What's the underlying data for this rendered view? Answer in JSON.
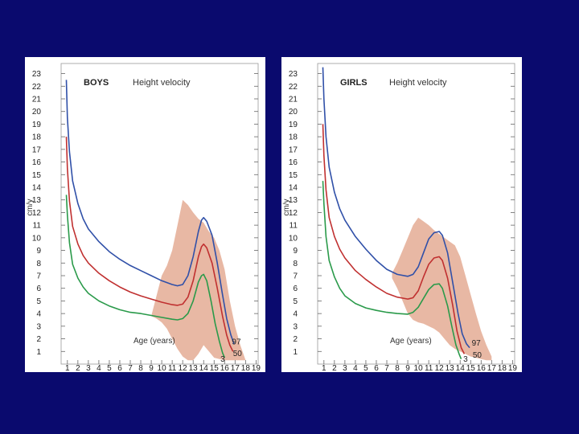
{
  "colors": {
    "background": "#0a0a6e",
    "band": "#e8b8a4",
    "p97": "#3050a8",
    "p50": "#c03030",
    "p3": "#2a9a4a"
  },
  "chart_data": [
    {
      "type": "line",
      "title": "BOYS",
      "subtitle": "Height velocity",
      "xlabel": "Age (years)",
      "ylabel": "cm/y",
      "xlim": [
        0.4,
        19.2
      ],
      "ylim": [
        0,
        23.8
      ],
      "x_ticks": [
        "1",
        "2",
        "3",
        "4",
        "5",
        "6",
        "7",
        "8",
        "9",
        "10",
        "11",
        "12",
        "13",
        "14",
        "15",
        "16",
        "17",
        "18",
        "19"
      ],
      "y_ticks": [
        "1",
        "2",
        "3",
        "4",
        "5",
        "6",
        "7",
        "8",
        "9",
        "10",
        "11",
        "12",
        "13",
        "14",
        "15",
        "16",
        "17",
        "18",
        "19",
        "20",
        "21",
        "22",
        "23"
      ],
      "band": {
        "upper": [
          [
            10,
            7
          ],
          [
            10.5,
            7.8
          ],
          [
            11,
            9
          ],
          [
            11.5,
            11
          ],
          [
            12,
            13
          ],
          [
            12.5,
            12.6
          ],
          [
            13,
            12
          ],
          [
            13.5,
            11.5
          ],
          [
            14,
            11.2
          ],
          [
            14.5,
            10.5
          ],
          [
            15,
            10
          ],
          [
            15.5,
            9
          ],
          [
            16,
            7.5
          ],
          [
            16.5,
            5
          ],
          [
            17,
            3
          ],
          [
            17.5,
            1.5
          ],
          [
            18,
            0.3
          ]
        ],
        "lower": [
          [
            18,
            0.3
          ],
          [
            17.5,
            0.3
          ],
          [
            17,
            0.3
          ],
          [
            16.5,
            0.3
          ],
          [
            16,
            0.3
          ],
          [
            15.5,
            0.4
          ],
          [
            15,
            0.5
          ],
          [
            14.5,
            1
          ],
          [
            14,
            1.5
          ],
          [
            13.5,
            0.8
          ],
          [
            13,
            0.3
          ],
          [
            12.5,
            0.3
          ],
          [
            12,
            0.6
          ],
          [
            11.5,
            1.2
          ],
          [
            11,
            2
          ],
          [
            10.5,
            2.8
          ],
          [
            10,
            3.3
          ],
          [
            9.5,
            3.6
          ],
          [
            9,
            3.8
          ]
        ]
      },
      "series": [
        {
          "name": "97",
          "points": [
            [
              0.9,
              22.5
            ],
            [
              1.0,
              19.5
            ],
            [
              1.2,
              16.8
            ],
            [
              1.5,
              14.5
            ],
            [
              2,
              12.7
            ],
            [
              2.5,
              11.5
            ],
            [
              3,
              10.7
            ],
            [
              4,
              9.7
            ],
            [
              5,
              8.9
            ],
            [
              6,
              8.3
            ],
            [
              7,
              7.8
            ],
            [
              8,
              7.4
            ],
            [
              9,
              7.0
            ],
            [
              10,
              6.6
            ],
            [
              11,
              6.3
            ],
            [
              11.5,
              6.2
            ],
            [
              12,
              6.3
            ],
            [
              12.5,
              7.0
            ],
            [
              13,
              8.5
            ],
            [
              13.5,
              10.5
            ],
            [
              13.8,
              11.4
            ],
            [
              14,
              11.6
            ],
            [
              14.3,
              11.3
            ],
            [
              14.8,
              10.2
            ],
            [
              15.3,
              8.0
            ],
            [
              15.8,
              5.5
            ],
            [
              16.2,
              3.6
            ],
            [
              16.6,
              2.3
            ],
            [
              16.9,
              1.6
            ]
          ]
        },
        {
          "name": "50",
          "points": [
            [
              0.9,
              18.0
            ],
            [
              1.0,
              15.5
            ],
            [
              1.2,
              12.9
            ],
            [
              1.5,
              10.9
            ],
            [
              2,
              9.5
            ],
            [
              2.5,
              8.6
            ],
            [
              3,
              8.0
            ],
            [
              4,
              7.2
            ],
            [
              5,
              6.6
            ],
            [
              6,
              6.1
            ],
            [
              7,
              5.7
            ],
            [
              8,
              5.4
            ],
            [
              9,
              5.15
            ],
            [
              10,
              4.9
            ],
            [
              11,
              4.7
            ],
            [
              11.5,
              4.65
            ],
            [
              12,
              4.75
            ],
            [
              12.5,
              5.3
            ],
            [
              13,
              6.6
            ],
            [
              13.5,
              8.5
            ],
            [
              13.8,
              9.3
            ],
            [
              14,
              9.5
            ],
            [
              14.3,
              9.2
            ],
            [
              14.8,
              8.0
            ],
            [
              15.3,
              6.0
            ],
            [
              15.8,
              3.8
            ],
            [
              16.2,
              2.3
            ],
            [
              16.5,
              1.5
            ],
            [
              16.8,
              1.0
            ]
          ]
        },
        {
          "name": "3",
          "points": [
            [
              0.9,
              13.4
            ],
            [
              1.0,
              11.8
            ],
            [
              1.2,
              9.6
            ],
            [
              1.5,
              7.9
            ],
            [
              2,
              6.8
            ],
            [
              2.5,
              6.1
            ],
            [
              3,
              5.6
            ],
            [
              4,
              5.0
            ],
            [
              5,
              4.6
            ],
            [
              6,
              4.3
            ],
            [
              7,
              4.1
            ],
            [
              8,
              4.0
            ],
            [
              9,
              3.85
            ],
            [
              10,
              3.7
            ],
            [
              11,
              3.55
            ],
            [
              11.5,
              3.5
            ],
            [
              12,
              3.6
            ],
            [
              12.5,
              4.0
            ],
            [
              13,
              5.0
            ],
            [
              13.5,
              6.5
            ],
            [
              13.8,
              7.0
            ],
            [
              14,
              7.1
            ],
            [
              14.3,
              6.6
            ],
            [
              14.7,
              5.0
            ],
            [
              15.1,
              3.2
            ],
            [
              15.5,
              1.8
            ],
            [
              15.8,
              0.9
            ],
            [
              16.0,
              0.5
            ]
          ]
        }
      ],
      "pct_labels": [
        {
          "text": "97",
          "x": 16.7,
          "y": 1.55
        },
        {
          "text": "50",
          "x": 16.8,
          "y": 0.65
        },
        {
          "text": "3",
          "x": 15.6,
          "y": 0.2
        }
      ]
    },
    {
      "type": "line",
      "title": "GIRLS",
      "subtitle": "Height velocity",
      "xlabel": "Age (years)",
      "ylabel": "cm/y",
      "xlim": [
        0.4,
        19.2
      ],
      "ylim": [
        0,
        23.8
      ],
      "x_ticks": [
        "1",
        "2",
        "3",
        "4",
        "5",
        "6",
        "7",
        "8",
        "9",
        "10",
        "11",
        "12",
        "13",
        "14",
        "15",
        "16",
        "17",
        "18",
        "19"
      ],
      "y_ticks": [
        "1",
        "2",
        "3",
        "4",
        "5",
        "6",
        "7",
        "8",
        "9",
        "10",
        "11",
        "12",
        "13",
        "14",
        "15",
        "16",
        "17",
        "18",
        "19",
        "20",
        "21",
        "22",
        "23"
      ],
      "band": {
        "upper": [
          [
            7.5,
            7.2
          ],
          [
            8,
            8
          ],
          [
            8.5,
            9
          ],
          [
            9,
            10
          ],
          [
            9.5,
            11
          ],
          [
            10,
            11.6
          ],
          [
            10.5,
            11.3
          ],
          [
            11,
            11
          ],
          [
            11.5,
            10.6
          ],
          [
            12,
            10.3
          ],
          [
            12.5,
            10
          ],
          [
            13,
            9.7
          ],
          [
            13.5,
            9.4
          ],
          [
            14,
            8.5
          ],
          [
            14.5,
            7
          ],
          [
            15,
            5.5
          ],
          [
            15.5,
            4
          ],
          [
            16,
            2.6
          ],
          [
            16.5,
            1.5
          ],
          [
            17,
            0.6
          ]
        ],
        "lower": [
          [
            17,
            0.3
          ],
          [
            16.5,
            0.3
          ],
          [
            16,
            0.4
          ],
          [
            15.5,
            0.5
          ],
          [
            15,
            0.6
          ],
          [
            14.5,
            0.8
          ],
          [
            14,
            1
          ],
          [
            13.5,
            1.2
          ],
          [
            13,
            1.5
          ],
          [
            12.5,
            2
          ],
          [
            12,
            2.5
          ],
          [
            11.5,
            2.8
          ],
          [
            11,
            3
          ],
          [
            10.5,
            3.2
          ],
          [
            10,
            3.3
          ],
          [
            9.5,
            3.5
          ],
          [
            9,
            4
          ],
          [
            8.5,
            5
          ],
          [
            8,
            6
          ],
          [
            7.5,
            6.8
          ]
        ]
      },
      "series": [
        {
          "name": "97",
          "points": [
            [
              0.9,
              23.5
            ],
            [
              1.0,
              21.0
            ],
            [
              1.2,
              18.0
            ],
            [
              1.5,
              15.6
            ],
            [
              2,
              13.6
            ],
            [
              2.5,
              12.3
            ],
            [
              3,
              11.4
            ],
            [
              4,
              10.1
            ],
            [
              5,
              9.1
            ],
            [
              6,
              8.2
            ],
            [
              7,
              7.5
            ],
            [
              8,
              7.1
            ],
            [
              9,
              6.95
            ],
            [
              9.5,
              7.1
            ],
            [
              10,
              7.7
            ],
            [
              10.5,
              8.8
            ],
            [
              11,
              9.9
            ],
            [
              11.5,
              10.4
            ],
            [
              12,
              10.5
            ],
            [
              12.3,
              10.2
            ],
            [
              12.8,
              8.8
            ],
            [
              13.3,
              6.4
            ],
            [
              13.8,
              4.0
            ],
            [
              14.2,
              2.4
            ],
            [
              14.6,
              1.6
            ],
            [
              14.9,
              1.3
            ]
          ]
        },
        {
          "name": "50",
          "points": [
            [
              0.9,
              19.0
            ],
            [
              1.0,
              16.5
            ],
            [
              1.2,
              13.8
            ],
            [
              1.5,
              11.6
            ],
            [
              2,
              10.1
            ],
            [
              2.5,
              9.1
            ],
            [
              3,
              8.4
            ],
            [
              4,
              7.4
            ],
            [
              5,
              6.7
            ],
            [
              6,
              6.1
            ],
            [
              7,
              5.6
            ],
            [
              8,
              5.3
            ],
            [
              9,
              5.15
            ],
            [
              9.5,
              5.25
            ],
            [
              10,
              5.8
            ],
            [
              10.5,
              6.9
            ],
            [
              11,
              7.9
            ],
            [
              11.5,
              8.4
            ],
            [
              12,
              8.5
            ],
            [
              12.3,
              8.2
            ],
            [
              12.8,
              6.8
            ],
            [
              13.3,
              4.6
            ],
            [
              13.7,
              2.6
            ],
            [
              14.1,
              1.3
            ],
            [
              14.4,
              0.8
            ]
          ]
        },
        {
          "name": "3",
          "points": [
            [
              0.9,
              14.5
            ],
            [
              1.0,
              12.7
            ],
            [
              1.2,
              10.1
            ],
            [
              1.5,
              8.2
            ],
            [
              2,
              6.9
            ],
            [
              2.5,
              6.0
            ],
            [
              3,
              5.4
            ],
            [
              4,
              4.8
            ],
            [
              5,
              4.45
            ],
            [
              6,
              4.25
            ],
            [
              7,
              4.1
            ],
            [
              8,
              4.0
            ],
            [
              9,
              3.95
            ],
            [
              9.5,
              4.1
            ],
            [
              10,
              4.5
            ],
            [
              10.5,
              5.2
            ],
            [
              11,
              5.9
            ],
            [
              11.5,
              6.3
            ],
            [
              12,
              6.35
            ],
            [
              12.3,
              6.0
            ],
            [
              12.8,
              4.6
            ],
            [
              13.2,
              3.0
            ],
            [
              13.6,
              1.5
            ],
            [
              13.9,
              0.8
            ],
            [
              14.1,
              0.4
            ]
          ]
        }
      ],
      "pct_labels": [
        {
          "text": "97",
          "x": 15.1,
          "y": 1.45
        },
        {
          "text": "50",
          "x": 15.2,
          "y": 0.5
        },
        {
          "text": "3",
          "x": 14.3,
          "y": 0.2
        }
      ]
    }
  ]
}
